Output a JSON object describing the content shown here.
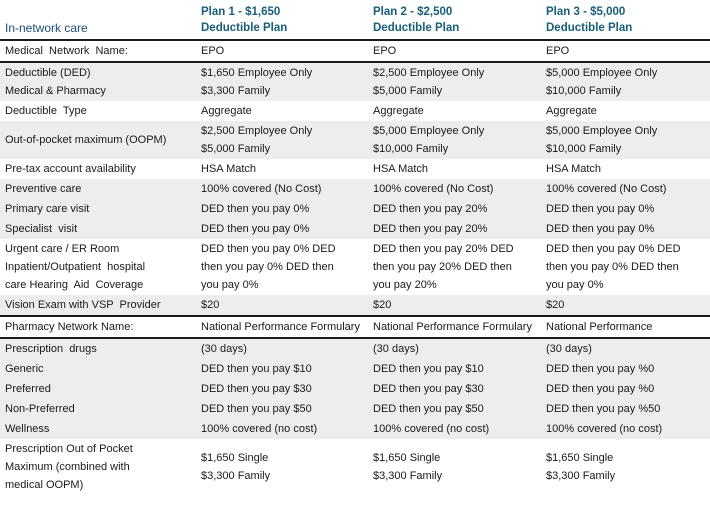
{
  "header": {
    "row_label_title": "In-network care",
    "plans": [
      {
        "line1": "Plan 1 - $1,650",
        "line2": "Deductible Plan"
      },
      {
        "line1": "Plan 2 - $2,500",
        "line2": "Deductible Plan"
      },
      {
        "line1": "Plan 3 - $5,000",
        "line2": "Deductible Plan"
      }
    ]
  },
  "colors": {
    "plan_header_teal": "#185E78",
    "row_label_navy": "#1F4E79",
    "row_shade_gray": "#EDEDED",
    "rule_line": "#1A1A1A",
    "body_text": "#1A1A1A"
  },
  "rows": [
    {
      "label": [
        "Medical  Network  Name:"
      ],
      "values": [
        [
          "EPO"
        ],
        [
          "EPO"
        ],
        [
          "EPO"
        ]
      ],
      "shaded": false,
      "border_top": false,
      "border_bottom": true
    },
    {
      "label": [
        "Deductible (DED)",
        "Medical & Pharmacy"
      ],
      "values": [
        [
          "$1,650 Employee Only",
          "$3,300 Family"
        ],
        [
          "$2,500 Employee Only",
          "$5,000 Family"
        ],
        [
          "$5,000 Employee Only",
          "$10,000 Family"
        ]
      ],
      "shaded": true,
      "border_top": false,
      "border_bottom": false
    },
    {
      "label": [
        "Deductible  Type"
      ],
      "values": [
        [
          "Aggregate"
        ],
        [
          "Aggregate"
        ],
        [
          "Aggregate"
        ]
      ],
      "shaded": false,
      "border_top": false,
      "border_bottom": false
    },
    {
      "label": [
        "Out-of-pocket maximum (OOPM)"
      ],
      "values": [
        [
          "$2,500 Employee Only",
          "$5,000 Family"
        ],
        [
          "$5,000 Employee Only",
          "$10,000 Family"
        ],
        [
          "$5,000 Employee Only",
          "$10,000 Family"
        ]
      ],
      "shaded": true,
      "border_top": false,
      "border_bottom": false
    },
    {
      "label": [
        "Pre-tax account availability"
      ],
      "values": [
        [
          "HSA Match"
        ],
        [
          "HSA Match"
        ],
        [
          "HSA Match"
        ]
      ],
      "shaded": false,
      "border_top": false,
      "border_bottom": false
    },
    {
      "label": [
        "Preventive care"
      ],
      "values": [
        [
          "100% covered (No Cost)"
        ],
        [
          "100% covered (No Cost)"
        ],
        [
          "100% covered (No Cost)"
        ]
      ],
      "shaded": true,
      "border_top": false,
      "border_bottom": false
    },
    {
      "label": [
        "Primary care visit"
      ],
      "values": [
        [
          "DED then you pay 0%"
        ],
        [
          "DED then you pay 20%"
        ],
        [
          "DED then you pay 0%"
        ]
      ],
      "shaded": true,
      "border_top": false,
      "border_bottom": false
    },
    {
      "label": [
        "Specialist  visit"
      ],
      "values": [
        [
          "DED then you pay 0%"
        ],
        [
          "DED then you pay 20%"
        ],
        [
          "DED then you pay 0%"
        ]
      ],
      "shaded": true,
      "border_top": false,
      "border_bottom": false
    },
    {
      "label": [
        "Urgent care / ER Room",
        "Inpatient/Outpatient  hospital",
        "care Hearing  Aid  Coverage"
      ],
      "values": [
        [
          "DED then you pay 0% DED",
          "then you pay 0% DED then",
          "you pay 0%"
        ],
        [
          "DED then you pay 20% DED",
          "then you pay 20% DED then",
          "you pay 20%"
        ],
        [
          "DED then you pay 0% DED",
          "then you pay 0% DED then",
          "you pay 0%"
        ]
      ],
      "shaded": false,
      "border_top": false,
      "border_bottom": false
    },
    {
      "label": [
        "Vision Exam with VSP  Provider"
      ],
      "values": [
        [
          "$20"
        ],
        [
          "$20"
        ],
        [
          "$20"
        ]
      ],
      "shaded": true,
      "border_top": false,
      "border_bottom": false
    },
    {
      "label": [
        "Pharmacy Network Name:"
      ],
      "values": [
        [
          "National Performance Formulary"
        ],
        [
          "National Performance Formulary"
        ],
        [
          "National Performance"
        ]
      ],
      "shaded": false,
      "border_top": true,
      "border_bottom": true
    },
    {
      "label": [
        "Prescription  drugs"
      ],
      "values": [
        [
          "(30 days)"
        ],
        [
          "(30 days)"
        ],
        [
          "(30 days)"
        ]
      ],
      "shaded": true,
      "border_top": false,
      "border_bottom": false
    },
    {
      "label": [
        "Generic"
      ],
      "values": [
        [
          "DED then you pay $10"
        ],
        [
          "DED then you pay $10"
        ],
        [
          "DED then you pay %0"
        ]
      ],
      "shaded": true,
      "border_top": false,
      "border_bottom": false
    },
    {
      "label": [
        "Preferred"
      ],
      "values": [
        [
          "DED then you pay $30"
        ],
        [
          "DED then you pay $30"
        ],
        [
          "DED then you pay %0"
        ]
      ],
      "shaded": true,
      "border_top": false,
      "border_bottom": false
    },
    {
      "label": [
        "Non-Preferred"
      ],
      "values": [
        [
          "DED then you pay $50"
        ],
        [
          "DED then you pay $50"
        ],
        [
          "DED then you pay %50"
        ]
      ],
      "shaded": true,
      "border_top": false,
      "border_bottom": false
    },
    {
      "label": [
        "Wellness"
      ],
      "values": [
        [
          "100% covered (no cost)"
        ],
        [
          "100% covered (no cost)"
        ],
        [
          "100% covered (no cost)"
        ]
      ],
      "shaded": true,
      "border_top": false,
      "border_bottom": false
    },
    {
      "label": [
        "Prescription Out of Pocket",
        "Maximum (combined with",
        "medical OOPM)"
      ],
      "values": [
        [
          "$1,650 Single",
          "$3,300 Family"
        ],
        [
          "$1,650 Single",
          "$3,300 Family"
        ],
        [
          "$1,650 Single",
          "$3,300 Family"
        ]
      ],
      "shaded": false,
      "border_top": false,
      "border_bottom": false
    }
  ]
}
